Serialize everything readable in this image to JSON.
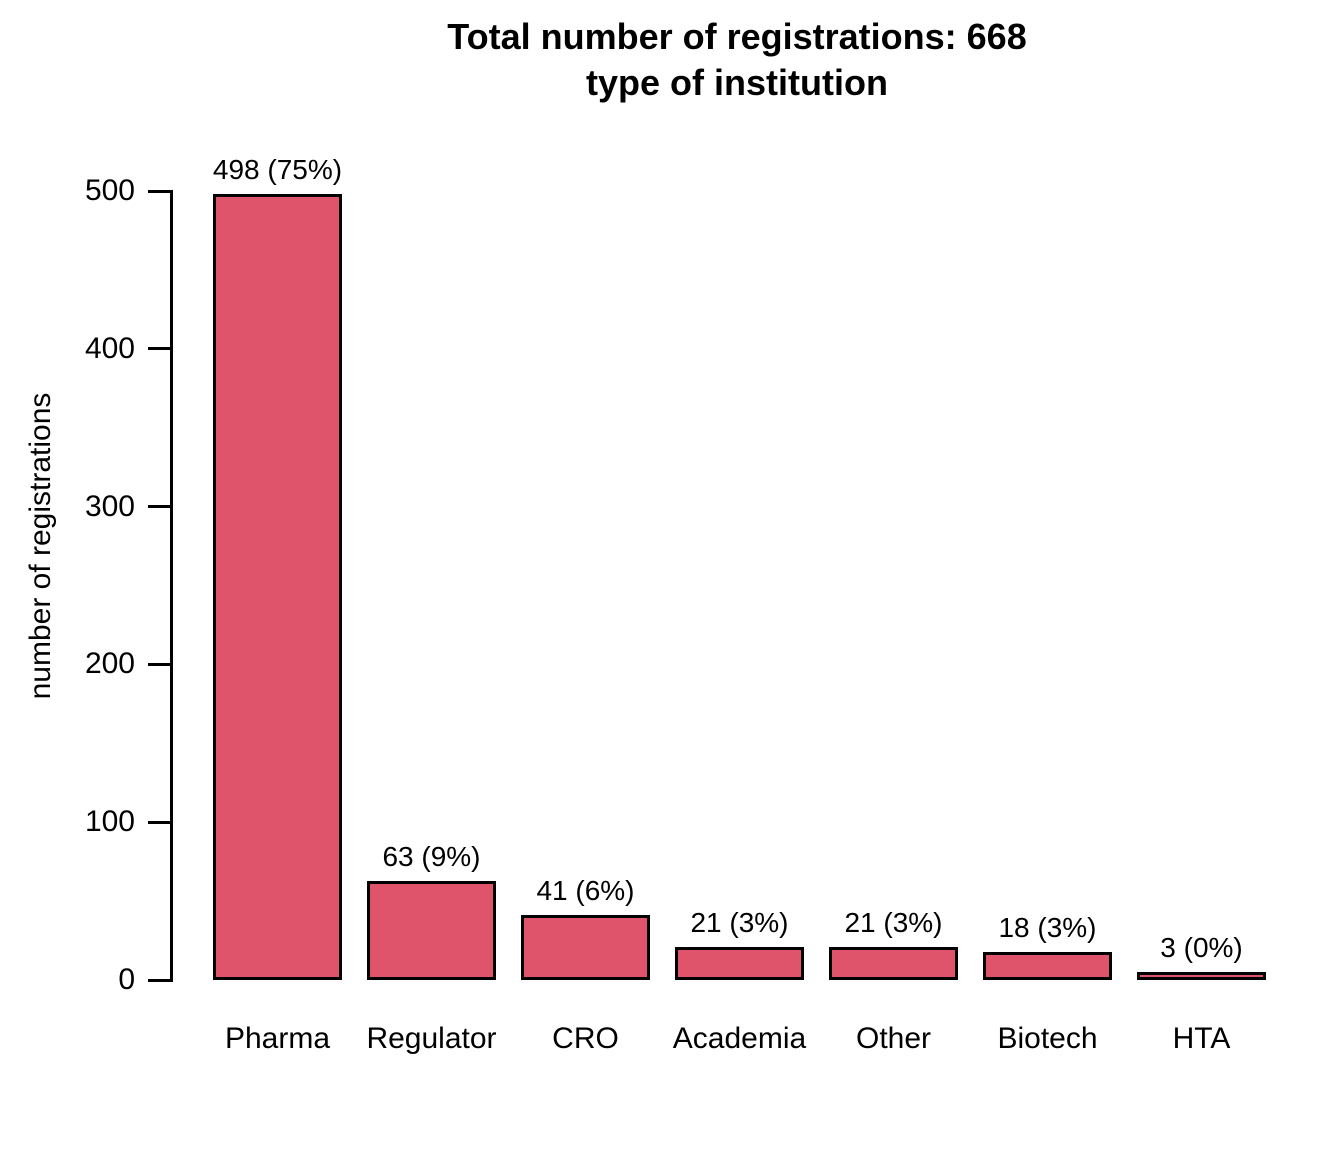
{
  "title": {
    "line1": "Total number of registrations: 668",
    "line2": "type of institution"
  },
  "chart_data": {
    "type": "bar",
    "title": "Total number of registrations: 668 — type of institution",
    "total_registrations": 668,
    "categories": [
      "Pharma",
      "Regulator",
      "CRO",
      "Academia",
      "Other",
      "Biotech",
      "HTA"
    ],
    "values": [
      498,
      63,
      41,
      21,
      21,
      18,
      3
    ],
    "bar_labels": [
      "498 (75%)",
      "63 (9%)",
      "41 (6%)",
      "21 (3%)",
      "21 (3%)",
      "18 (3%)",
      "3 (0%)"
    ],
    "percentages": [
      75,
      9,
      6,
      3,
      3,
      3,
      0
    ],
    "xlabel": "",
    "ylabel": "number of registrations",
    "yticks": [
      0,
      100,
      200,
      300,
      400,
      500
    ],
    "ylim": [
      0,
      500
    ],
    "grid": "off",
    "legend": "none",
    "bar_color": "#DF536B",
    "bar_border_color": "#000000",
    "text_color": "#000000",
    "background_color": "#ffffff"
  }
}
